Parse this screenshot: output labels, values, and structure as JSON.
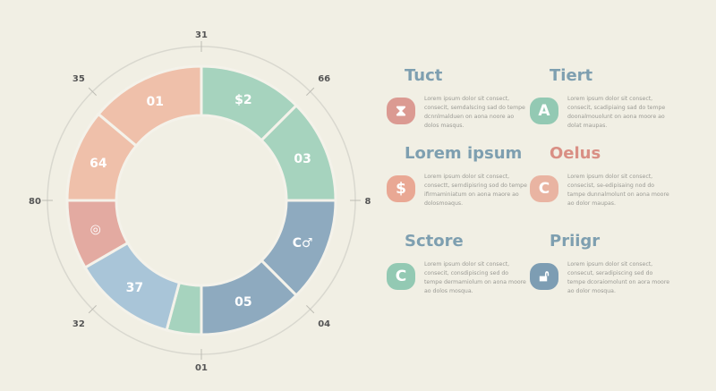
{
  "ring_labels": [
    "31",
    "66",
    "8",
    "04",
    "01",
    "32",
    "80",
    "35"
  ],
  "segments": [
    {
      "label": "$2",
      "color": "#a6d3be"
    },
    {
      "label": "03",
      "color": "#a6d3be"
    },
    {
      "label": "C♂",
      "color": "#8eaabf"
    },
    {
      "label": "05",
      "color": "#8eaabf"
    },
    {
      "label": "",
      "color": "#a6d3be"
    },
    {
      "label": "37",
      "color": "#a9c5d8"
    },
    {
      "label": "◎",
      "color": "#e3aaa1"
    },
    {
      "label": "64",
      "color": "#efc0aa"
    },
    {
      "label": "01",
      "color": "#efc0aa"
    }
  ],
  "blocks": [
    {
      "title": "Tuct",
      "icon": "hourglass-icon",
      "glyph": "⧗",
      "color": "#db9a92",
      "title_color": "#7e9fb0",
      "text": "Lorem ipsum dolor sit consect, consecit, semdalscing sad do tempe dcnnlmalduen on aona noore ao dolos masqus."
    },
    {
      "title": "Tiert",
      "icon": "letter-a-icon",
      "glyph": "A",
      "color": "#93c9b3",
      "title_color": "#7e9fb0",
      "text": "Lorem ipsum dolor sit consect, consecit, scadipiaing sad do tempe doonalmouolunt on aona moore ao dolat maupas."
    },
    {
      "title": "Lorem ipsum",
      "icon": "dollar-icon",
      "glyph": "$",
      "color": "#e9a894",
      "title_color": "#7e9fb0",
      "text": "Lorem ipsum dolor sit consect, consectt, serndipisring sod do tempe ifirmaminiatum on aona maore ao dolosmoaqus."
    },
    {
      "title": "Oelus",
      "icon": "letter-c-icon",
      "glyph": "C",
      "color": "#e9b4a2",
      "title_color": "#d98f84",
      "text": "Lorem ipsum dolor sit consect, consecist, se-edipisaing nod do tampe dunnalmolunt on aona moore ao dolor maupas."
    },
    {
      "title": "Sctore",
      "icon": "letter-c-icon",
      "glyph": "C",
      "color": "#93c9b3",
      "title_color": "#7e9fb0",
      "text": "Lorem ipsum dolor sit consect, consecit, consdipiscing sed do tempe dermamiolum on aona moore ao dolos mosqua."
    },
    {
      "title": "Priigr",
      "icon": "lock-icon",
      "glyph": "🔓︎",
      "color": "#7d9db3",
      "title_color": "#7e9fb0",
      "text": "Lorem ipsum dolor sit consect, consecut, seradipiscing sed do tempe dcoraiomolunt on aora moore ao dolor mosqua."
    }
  ]
}
